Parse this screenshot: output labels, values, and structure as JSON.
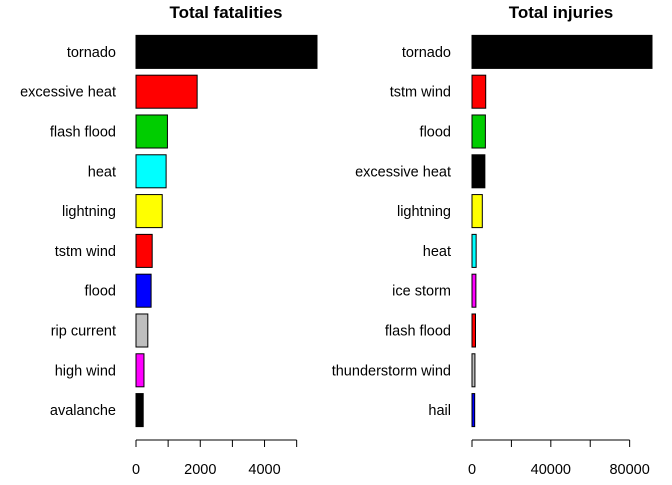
{
  "chart_data": [
    {
      "type": "bar",
      "orientation": "horizontal",
      "title": "Total fatalities",
      "xlabel": "",
      "ylabel": "",
      "categories": [
        "tornado",
        "excessive heat",
        "flash flood",
        "heat",
        "lightning",
        "tstm wind",
        "flood",
        "rip current",
        "high wind",
        "avalanche"
      ],
      "values": [
        5633,
        1903,
        978,
        937,
        816,
        504,
        470,
        368,
        248,
        224
      ],
      "colors": [
        "#000000",
        "#ff0000",
        "#00cd00",
        "#00ffff",
        "#ffff00",
        "#ff0000",
        "#0000ff",
        "#bebebe",
        "#ff00ff",
        "#000000"
      ],
      "xlim": [
        0,
        5633
      ],
      "ticks": [
        0,
        1000,
        2000,
        3000,
        4000,
        5000
      ],
      "tick_labels": [
        "0",
        "",
        "2000",
        "",
        "4000",
        ""
      ]
    },
    {
      "type": "bar",
      "orientation": "horizontal",
      "title": "Total injuries",
      "xlabel": "",
      "ylabel": "",
      "categories": [
        "tornado",
        "tstm wind",
        "flood",
        "excessive heat",
        "lightning",
        "heat",
        "ice storm",
        "flash flood",
        "thunderstorm wind",
        "hail"
      ],
      "values": [
        91346,
        6957,
        6789,
        6525,
        5230,
        2100,
        1975,
        1777,
        1488,
        1361
      ],
      "colors": [
        "#000000",
        "#ff0000",
        "#00cd00",
        "#000000",
        "#ffff00",
        "#00ffff",
        "#ff00ff",
        "#ff0000",
        "#bebebe",
        "#0000ff"
      ],
      "xlim": [
        0,
        91346
      ],
      "ticks": [
        0,
        20000,
        40000,
        60000,
        80000
      ],
      "tick_labels": [
        "0",
        "",
        "40000",
        "",
        "80000"
      ]
    }
  ]
}
